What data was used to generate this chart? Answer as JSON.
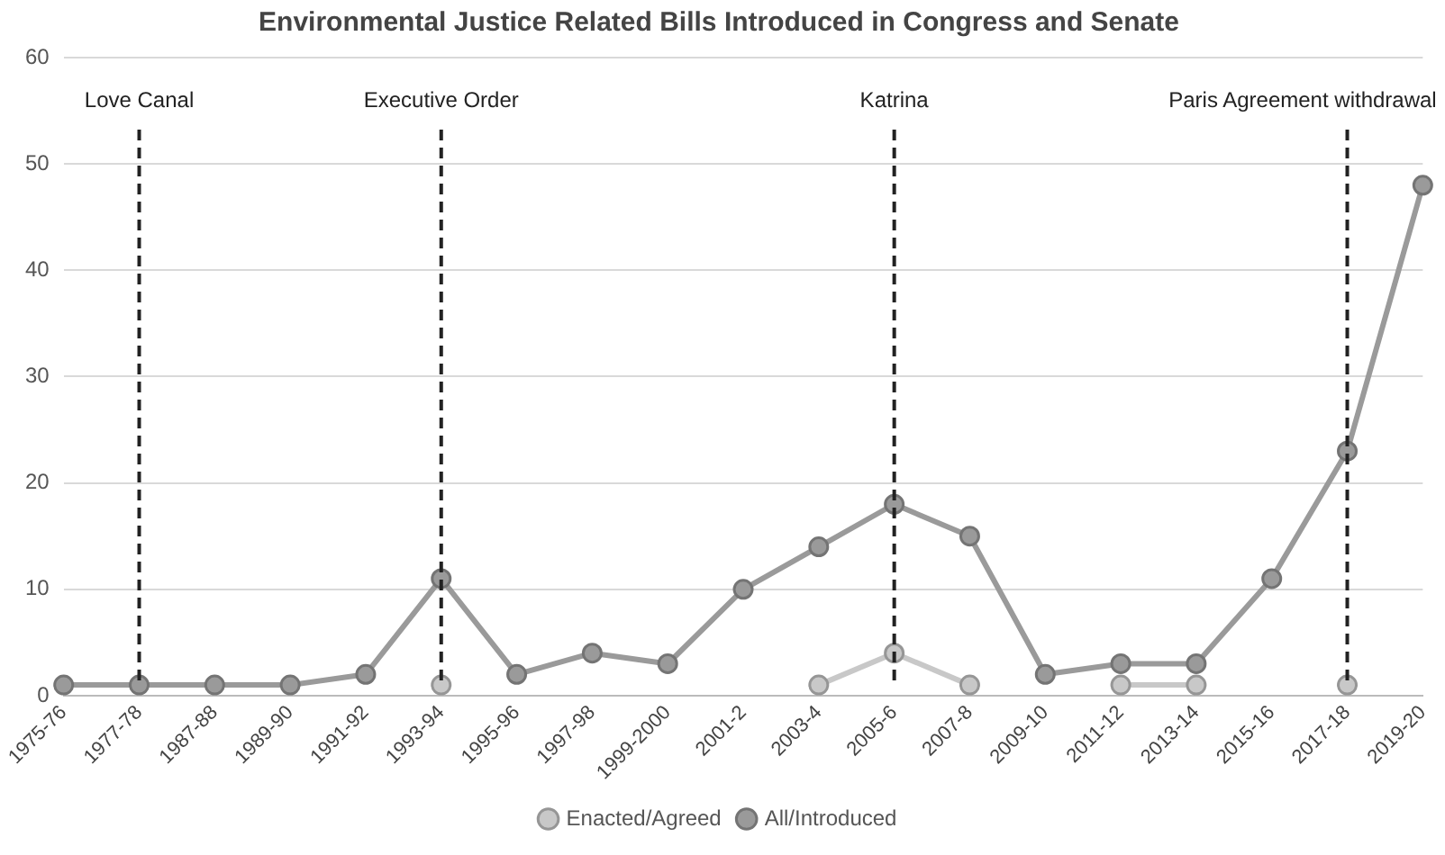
{
  "chart_data": {
    "type": "line",
    "title": "Environmental Justice Related Bills Introduced in Congress and Senate",
    "categories": [
      "1975-76",
      "1977-78",
      "1987-88",
      "1989-90",
      "1991-92",
      "1993-94",
      "1995-96",
      "1997-98",
      "1999-2000",
      "2001-2",
      "2003-4",
      "2005-6",
      "2007-8",
      "2009-10",
      "2011-12",
      "2013-14",
      "2015-16",
      "2017-18",
      "2019-20"
    ],
    "series": [
      {
        "name": "Enacted/Agreed",
        "color": "#c8c8c8",
        "values": [
          null,
          null,
          null,
          null,
          null,
          1,
          null,
          null,
          null,
          null,
          1,
          4,
          1,
          null,
          1,
          1,
          null,
          1,
          null
        ]
      },
      {
        "name": "All/Introduced",
        "color": "#9a9a9a",
        "values": [
          1,
          1,
          1,
          1,
          2,
          11,
          2,
          4,
          3,
          10,
          14,
          18,
          15,
          2,
          3,
          3,
          11,
          23,
          48
        ]
      }
    ],
    "ylim": [
      0,
      60
    ],
    "yticks": [
      0,
      10,
      20,
      30,
      40,
      50,
      60
    ],
    "grid": "y",
    "legend": "bottom",
    "marker": "circle",
    "line_style": "solid",
    "ref_lines": [
      {
        "axis": "x",
        "value": "1977-78",
        "label": "Love Canal",
        "color": "#222222",
        "line_style": "dashed"
      },
      {
        "axis": "x",
        "value": "1993-94",
        "label": "Executive Order",
        "color": "#222222",
        "line_style": "dashed"
      },
      {
        "axis": "x",
        "value": "2005-6",
        "label": "Katrina",
        "color": "#222222",
        "line_style": "dashed"
      },
      {
        "axis": "x",
        "value": "2017-18",
        "label": "Paris Agreement withdrawal",
        "color": "#222222",
        "line_style": "dashed"
      }
    ]
  }
}
